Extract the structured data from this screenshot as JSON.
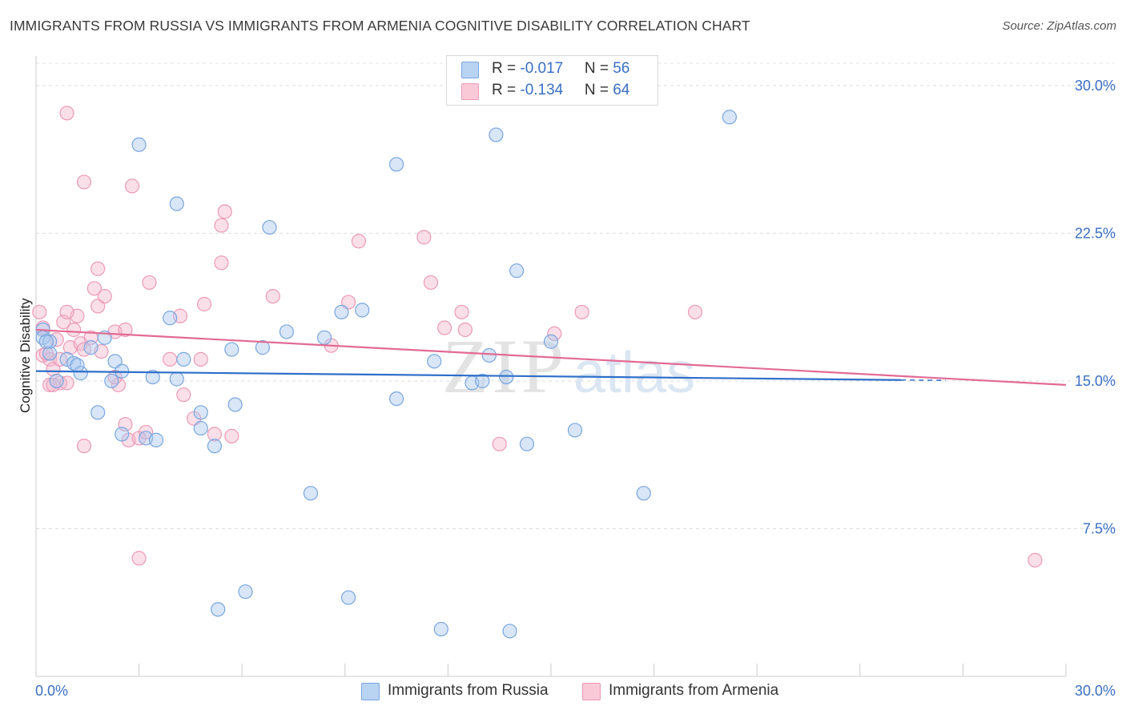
{
  "header": {
    "title": "IMMIGRANTS FROM RUSSIA VS IMMIGRANTS FROM ARMENIA COGNITIVE DISABILITY CORRELATION CHART",
    "source": "Source: ZipAtlas.com"
  },
  "legend": {
    "russia": {
      "r_label": "R = ",
      "r_value": "-0.017",
      "n_label": "N = ",
      "n_value": "56"
    },
    "armenia": {
      "r_label": "R = ",
      "r_value": "-0.134",
      "n_label": "N = ",
      "n_value": "64"
    }
  },
  "watermark": {
    "zip": "ZIP",
    "atlas": "atlas"
  },
  "colors": {
    "russia_fill": "#a8c8f0",
    "russia_stroke": "#7aa6e0",
    "russia_line": "#2f6fc9",
    "armenia_fill": "#f5b8cc",
    "armenia_stroke": "#ec9ab6",
    "armenia_line": "#e36b93",
    "tick_text": "#3a6fc4"
  },
  "chart_data": {
    "type": "scatter",
    "title": "IMMIGRANTS FROM RUSSIA VS IMMIGRANTS FROM ARMENIA COGNITIVE DISABILITY CORRELATION CHART",
    "xlabel": "",
    "ylabel": "Cognitive Disability",
    "xlim": [
      0,
      30
    ],
    "ylim": [
      0,
      31.5
    ],
    "x_tick_labels": [
      "0.0%",
      "30.0%"
    ],
    "y_ticks": [
      7.5,
      15.0,
      22.5,
      30.0
    ],
    "y_tick_labels": [
      "7.5%",
      "15.0%",
      "22.5%",
      "30.0%"
    ],
    "grid": true,
    "legend_position": "top-center",
    "series": [
      {
        "name": "Immigrants from Russia",
        "trend": {
          "x": [
            0,
            25.2
          ],
          "y": [
            15.5,
            15.05
          ],
          "dashed_to": 26.5
        },
        "points": [
          [
            0.2,
            17.6
          ],
          [
            0.2,
            17.2
          ],
          [
            0.4,
            16.4
          ],
          [
            0.4,
            17.0
          ],
          [
            0.6,
            15.0
          ],
          [
            0.9,
            16.1
          ],
          [
            1.1,
            15.9
          ],
          [
            1.3,
            15.4
          ],
          [
            1.6,
            16.7
          ],
          [
            1.8,
            13.4
          ],
          [
            2.3,
            16.0
          ],
          [
            2.5,
            12.3
          ],
          [
            2.5,
            15.5
          ],
          [
            2.2,
            15.0
          ],
          [
            3.2,
            12.1
          ],
          [
            3.5,
            12.0
          ],
          [
            3.9,
            18.2
          ],
          [
            4.1,
            15.1
          ],
          [
            4.3,
            16.1
          ],
          [
            4.8,
            12.6
          ],
          [
            4.8,
            13.4
          ],
          [
            5.2,
            11.7
          ],
          [
            5.7,
            16.6
          ],
          [
            5.8,
            13.8
          ],
          [
            6.6,
            16.7
          ],
          [
            7.3,
            17.5
          ],
          [
            8.0,
            9.3
          ],
          [
            8.4,
            17.2
          ],
          [
            8.9,
            18.5
          ],
          [
            9.5,
            18.6
          ],
          [
            10.5,
            26.0
          ],
          [
            10.5,
            14.1
          ],
          [
            11.6,
            16.0
          ],
          [
            12.7,
            14.9
          ],
          [
            13.0,
            15.0
          ],
          [
            13.2,
            16.3
          ],
          [
            13.7,
            15.2
          ],
          [
            14.3,
            11.8
          ],
          [
            14.0,
            20.6
          ],
          [
            15.0,
            17.0
          ],
          [
            15.7,
            12.5
          ],
          [
            17.7,
            9.3
          ],
          [
            20.2,
            28.4
          ],
          [
            3.0,
            27.0
          ],
          [
            4.1,
            24.0
          ],
          [
            6.8,
            22.8
          ],
          [
            13.4,
            27.5
          ],
          [
            6.1,
            4.3
          ],
          [
            5.3,
            3.4
          ],
          [
            9.1,
            4.0
          ],
          [
            11.8,
            2.4
          ],
          [
            13.8,
            2.3
          ],
          [
            1.2,
            15.8
          ],
          [
            0.3,
            17.0
          ],
          [
            2.0,
            17.2
          ],
          [
            3.4,
            15.2
          ]
        ]
      },
      {
        "name": "Immigrants from Armenia",
        "trend": {
          "x": [
            0,
            30
          ],
          "y": [
            17.6,
            14.8
          ]
        },
        "points": [
          [
            0.1,
            18.5
          ],
          [
            0.2,
            17.7
          ],
          [
            0.2,
            16.3
          ],
          [
            0.4,
            16.1
          ],
          [
            0.5,
            15.6
          ],
          [
            0.6,
            17.1
          ],
          [
            0.8,
            18.0
          ],
          [
            0.4,
            14.8
          ],
          [
            0.7,
            14.9
          ],
          [
            0.9,
            14.9
          ],
          [
            1.0,
            16.7
          ],
          [
            1.1,
            17.6
          ],
          [
            1.3,
            16.9
          ],
          [
            1.4,
            16.6
          ],
          [
            1.6,
            17.2
          ],
          [
            1.7,
            19.7
          ],
          [
            1.8,
            18.8
          ],
          [
            2.0,
            19.3
          ],
          [
            2.3,
            17.5
          ],
          [
            2.4,
            14.8
          ],
          [
            2.6,
            12.8
          ],
          [
            2.7,
            12.0
          ],
          [
            3.0,
            12.1
          ],
          [
            3.3,
            20.0
          ],
          [
            3.9,
            16.1
          ],
          [
            4.2,
            18.3
          ],
          [
            4.6,
            13.1
          ],
          [
            4.8,
            16.1
          ],
          [
            4.9,
            18.9
          ],
          [
            5.4,
            21.0
          ],
          [
            5.7,
            12.2
          ],
          [
            5.5,
            23.6
          ],
          [
            5.4,
            22.9
          ],
          [
            6.9,
            19.3
          ],
          [
            8.6,
            16.8
          ],
          [
            9.1,
            19.0
          ],
          [
            9.4,
            22.1
          ],
          [
            11.3,
            22.3
          ],
          [
            11.5,
            20.0
          ],
          [
            11.9,
            17.7
          ],
          [
            12.4,
            18.5
          ],
          [
            12.5,
            17.6
          ],
          [
            13.5,
            11.8
          ],
          [
            15.1,
            17.4
          ],
          [
            15.9,
            18.5
          ],
          [
            19.2,
            18.5
          ],
          [
            1.4,
            25.1
          ],
          [
            2.8,
            24.9
          ],
          [
            0.9,
            28.6
          ],
          [
            1.8,
            20.7
          ],
          [
            0.7,
            16.1
          ],
          [
            1.2,
            18.3
          ],
          [
            2.3,
            15.2
          ],
          [
            3.0,
            6.0
          ],
          [
            29.1,
            5.9
          ],
          [
            0.3,
            16.4
          ],
          [
            0.9,
            18.5
          ],
          [
            1.4,
            11.7
          ],
          [
            2.6,
            17.6
          ],
          [
            3.2,
            12.4
          ],
          [
            4.3,
            14.3
          ],
          [
            5.2,
            12.3
          ],
          [
            0.5,
            14.8
          ],
          [
            1.9,
            16.5
          ]
        ]
      }
    ]
  },
  "bottom_legend": {
    "russia_label": "Immigrants from Russia",
    "armenia_label": "Immigrants from Armenia"
  }
}
